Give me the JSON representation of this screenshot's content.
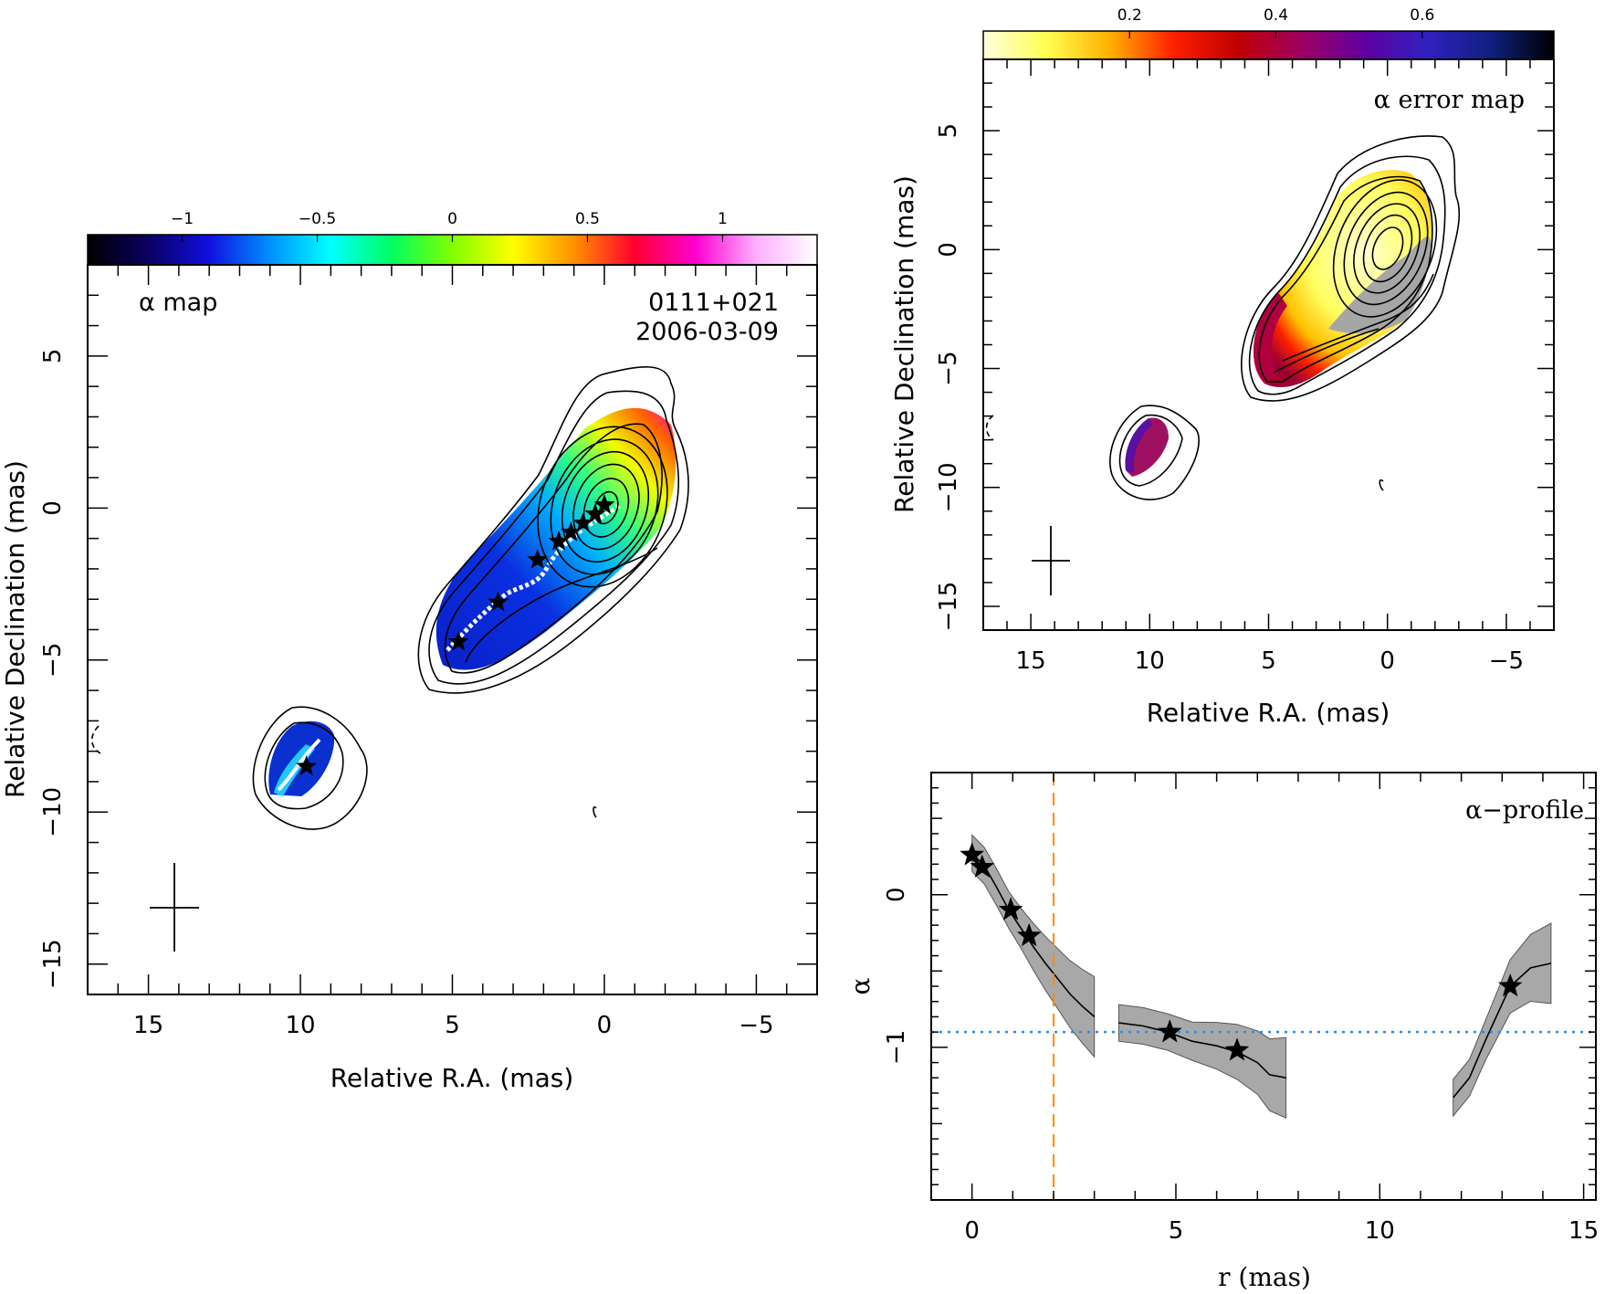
{
  "chart_data": [
    {
      "type": "heatmap",
      "panel": "alpha-map",
      "title": "α map",
      "source": "0111+021",
      "date": "2006-03-09",
      "xlabel": "Relative R.A. (mas)",
      "ylabel": "Relative Declination (mas)",
      "xlim": [
        17,
        -7
      ],
      "ylim": [
        -16,
        8
      ],
      "xticks": [
        15,
        10,
        5,
        0,
        -5
      ],
      "yticks": [
        5,
        0,
        -5,
        -10,
        -15
      ],
      "colorbar": {
        "range": [
          -1.35,
          1.35
        ],
        "ticks": [
          -1,
          -0.5,
          0,
          0.5,
          1
        ],
        "tick_labels": [
          "−1",
          "−0.5",
          "0",
          "0.5",
          "1"
        ],
        "colors": [
          "#000000",
          "#0a0060",
          "#1010e0",
          "#0090ff",
          "#00ffff",
          "#00ff60",
          "#80ff00",
          "#ffff00",
          "#ff9000",
          "#ff0030",
          "#ff00d0",
          "#ffb0ff",
          "#ffffff"
        ]
      },
      "ridge_stars": [
        [
          0.0,
          0.1
        ],
        [
          0.3,
          -0.2
        ],
        [
          0.7,
          -0.5
        ],
        [
          1.1,
          -0.8
        ],
        [
          1.5,
          -1.1
        ],
        [
          2.2,
          -1.7
        ],
        [
          3.5,
          -3.1
        ],
        [
          4.8,
          -4.4
        ],
        [
          9.8,
          -8.5
        ]
      ]
    },
    {
      "type": "heatmap",
      "panel": "alpha-error-map",
      "title": "α error map",
      "xlabel": "Relative R.A. (mas)",
      "ylabel": "Relative Declination (mas)",
      "xlim": [
        17,
        -7
      ],
      "ylim": [
        -16,
        8
      ],
      "xticks": [
        15,
        10,
        5,
        0,
        -5
      ],
      "yticks": [
        5,
        0,
        -5,
        -10,
        -15
      ],
      "colorbar": {
        "range": [
          0.0,
          0.78
        ],
        "ticks": [
          0.2,
          0.4,
          0.6
        ],
        "tick_labels": [
          "0.2",
          "0.4",
          "0.6"
        ],
        "colors": [
          "#ffffe0",
          "#ffff50",
          "#ffb000",
          "#ff2000",
          "#c00000",
          "#a00060",
          "#6000a0",
          "#3020c0",
          "#102080",
          "#000000"
        ]
      }
    },
    {
      "type": "line",
      "panel": "alpha-profile",
      "title": "α−profile",
      "xlabel": "r (mas)",
      "ylabel": "α",
      "xlim": [
        -1,
        15.3
      ],
      "ylim": [
        -2.0,
        0.8
      ],
      "xticks": [
        0,
        5,
        10,
        15
      ],
      "yticks": [
        0,
        -1
      ],
      "hline": -0.9,
      "vline": 2.0,
      "segments": [
        {
          "x": [
            0.0,
            0.3,
            0.6,
            0.9,
            1.2,
            1.5,
            1.8,
            2.1,
            2.4,
            2.7,
            3.0
          ],
          "y": [
            0.27,
            0.19,
            0.05,
            -0.1,
            -0.22,
            -0.34,
            -0.45,
            -0.55,
            -0.65,
            -0.73,
            -0.8
          ]
        },
        {
          "x": [
            3.6,
            4.2,
            4.8,
            5.4,
            6.0,
            6.5,
            7.0,
            7.3,
            7.7
          ],
          "y": [
            -0.84,
            -0.86,
            -0.9,
            -0.96,
            -0.99,
            -1.03,
            -1.1,
            -1.18,
            -1.2
          ]
        },
        {
          "x": [
            11.8,
            12.2,
            12.6,
            13.2,
            13.7,
            14.2
          ],
          "y": [
            -1.33,
            -1.2,
            -0.95,
            -0.6,
            -0.48,
            -0.45
          ]
        }
      ],
      "stars": [
        [
          0.0,
          0.26
        ],
        [
          0.25,
          0.18
        ],
        [
          0.95,
          -0.1
        ],
        [
          1.4,
          -0.27
        ],
        [
          4.85,
          -0.9
        ],
        [
          6.5,
          -1.02
        ],
        [
          13.2,
          -0.6
        ]
      ]
    }
  ]
}
